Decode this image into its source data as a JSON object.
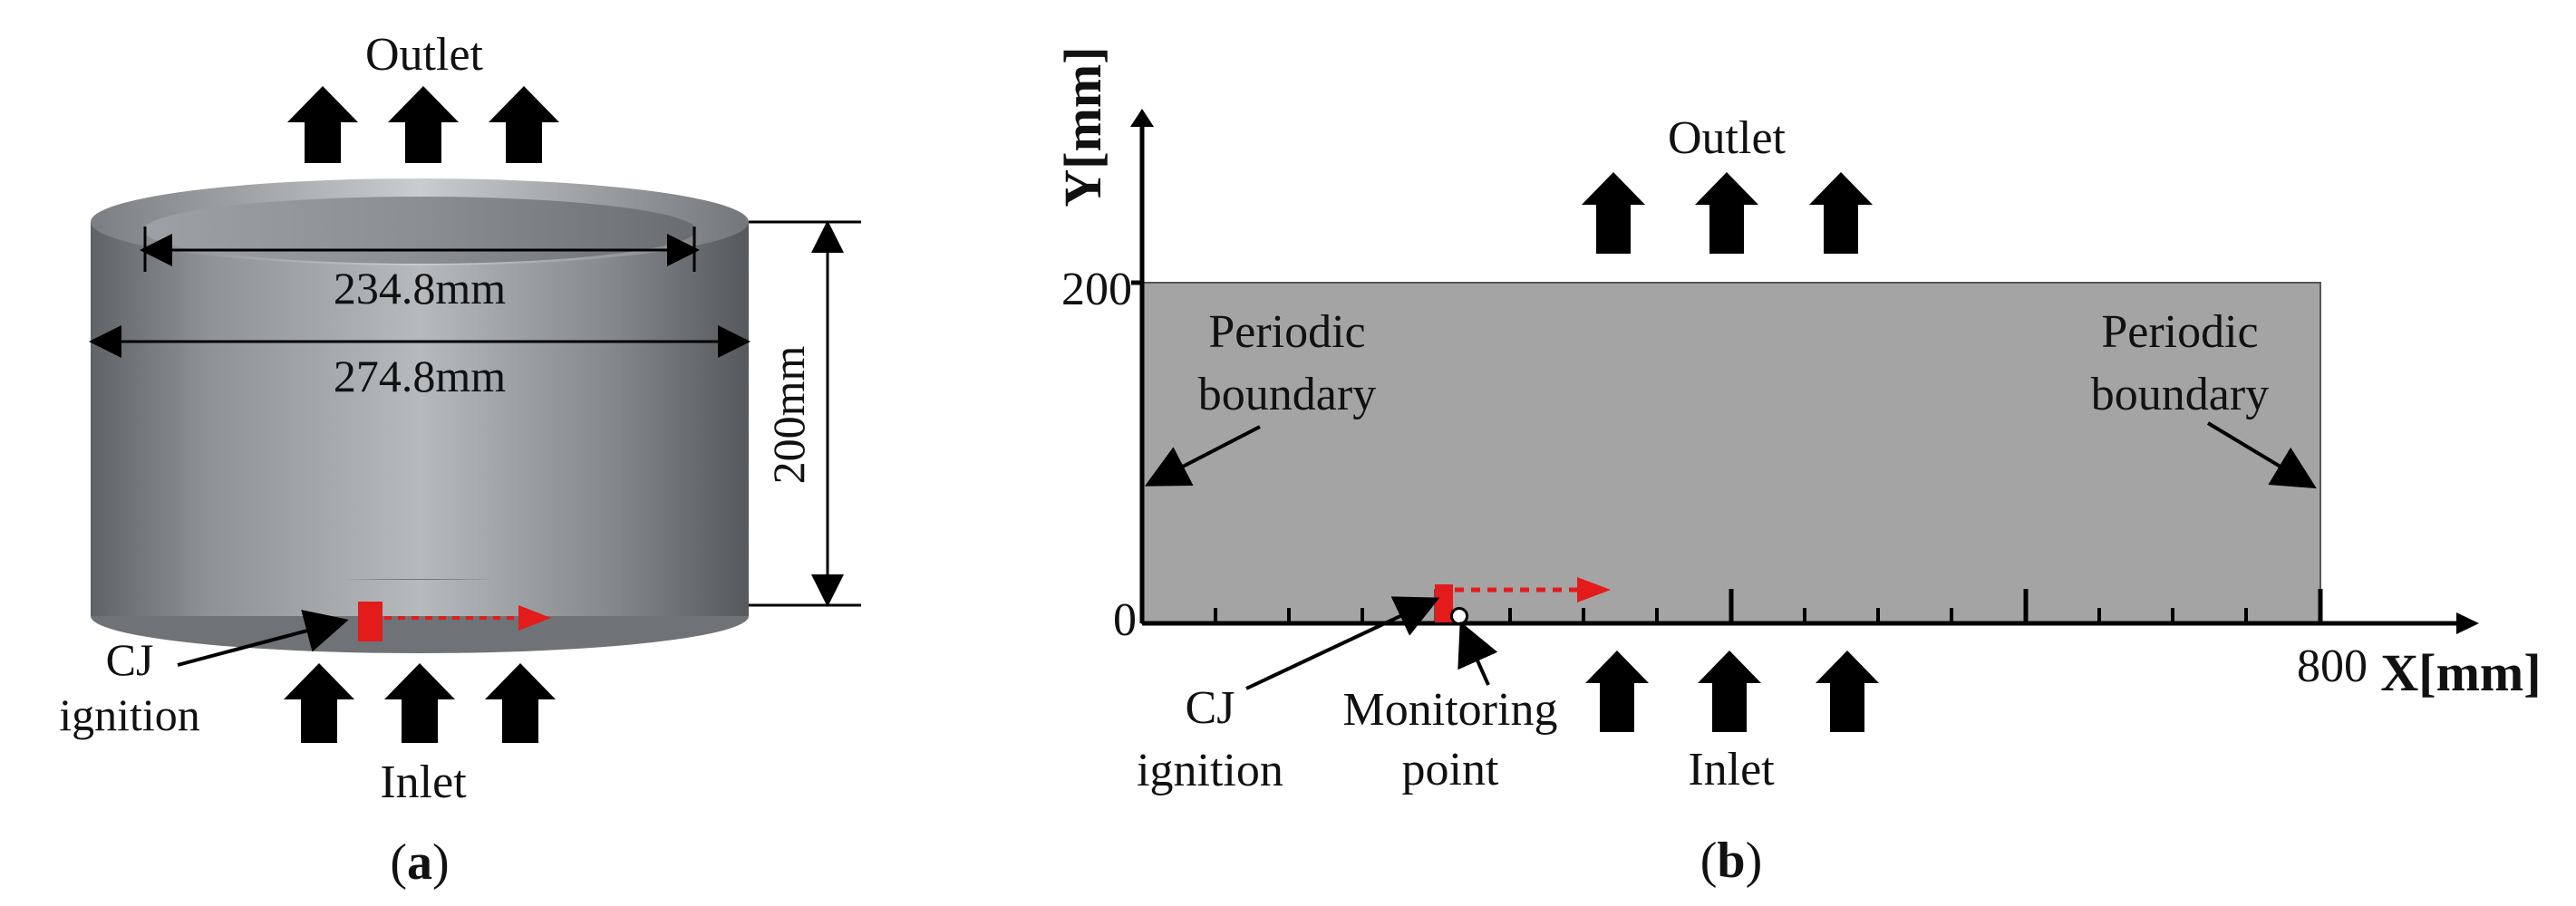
{
  "panel_a": {
    "outlet": "Outlet",
    "inlet": "Inlet",
    "inner_diameter": "234.8mm",
    "outer_diameter": "274.8mm",
    "height": "200mm",
    "ignition_line1": "CJ",
    "ignition_line2": "ignition",
    "caption_open": "(",
    "caption_letter": "a",
    "caption_close": ")"
  },
  "panel_b": {
    "outlet": "Outlet",
    "inlet": "Inlet",
    "y_axis_label": "Y[mm]",
    "x_axis_label": "X[mm]",
    "y_tick_0": "0",
    "y_tick_200": "200",
    "x_tick_800": "800",
    "periodic_left_line1": "Periodic",
    "periodic_left_line2": "boundary",
    "periodic_right_line1": "Periodic",
    "periodic_right_line2": "boundary",
    "ignition_line1": "CJ",
    "ignition_line2": "ignition",
    "monitor_line1": "Monitoring",
    "monitor_line2": "point",
    "caption_open": "(",
    "caption_letter": "b",
    "caption_close": ")"
  },
  "colors": {
    "gray_domain": "#a4a4a4",
    "cylinder_dark": "#6e7174",
    "cylinder_light": "#b9bdc0",
    "ignition_red": "#e31b1b",
    "arrow_black": "#000000"
  }
}
